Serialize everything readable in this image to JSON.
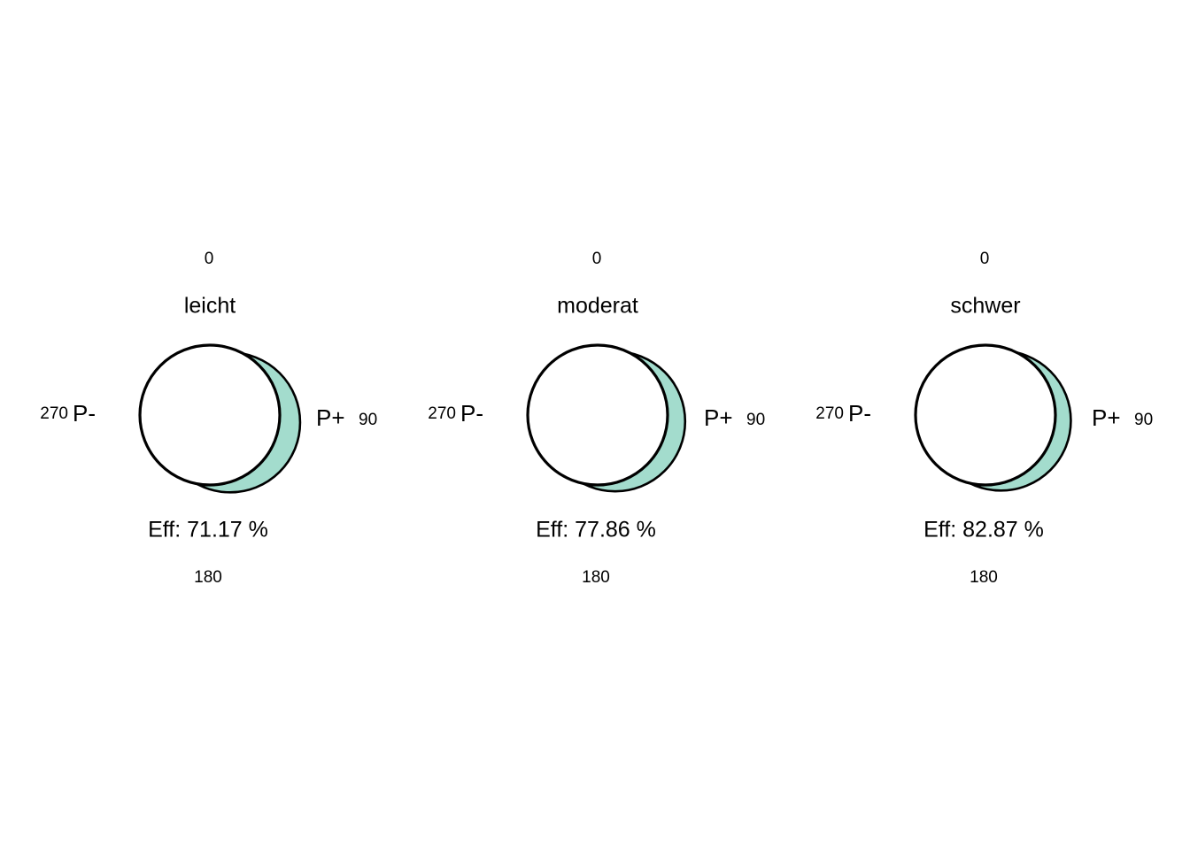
{
  "chart_data": {
    "type": "other",
    "subtype": "efficiency-circle-diagram",
    "fill_color": "#a3dccd",
    "outline_color": "#000000",
    "panels": [
      {
        "title": "leicht",
        "angle_labels": {
          "top": "0",
          "right": "90",
          "bottom": "180",
          "left": "270"
        },
        "side_labels": {
          "left": "P-",
          "right": "P+"
        },
        "efficiency_label": "Eff: 71.17 %",
        "efficiency_percent": 71.17
      },
      {
        "title": "moderat",
        "angle_labels": {
          "top": "0",
          "right": "90",
          "bottom": "180",
          "left": "270"
        },
        "side_labels": {
          "left": "P-",
          "right": "P+"
        },
        "efficiency_label": "Eff: 77.86 %",
        "efficiency_percent": 77.86
      },
      {
        "title": "schwer",
        "angle_labels": {
          "top": "0",
          "right": "90",
          "bottom": "180",
          "left": "270"
        },
        "side_labels": {
          "left": "P-",
          "right": "P+"
        },
        "efficiency_label": "Eff: 82.87 %",
        "efficiency_percent": 82.87
      }
    ]
  }
}
